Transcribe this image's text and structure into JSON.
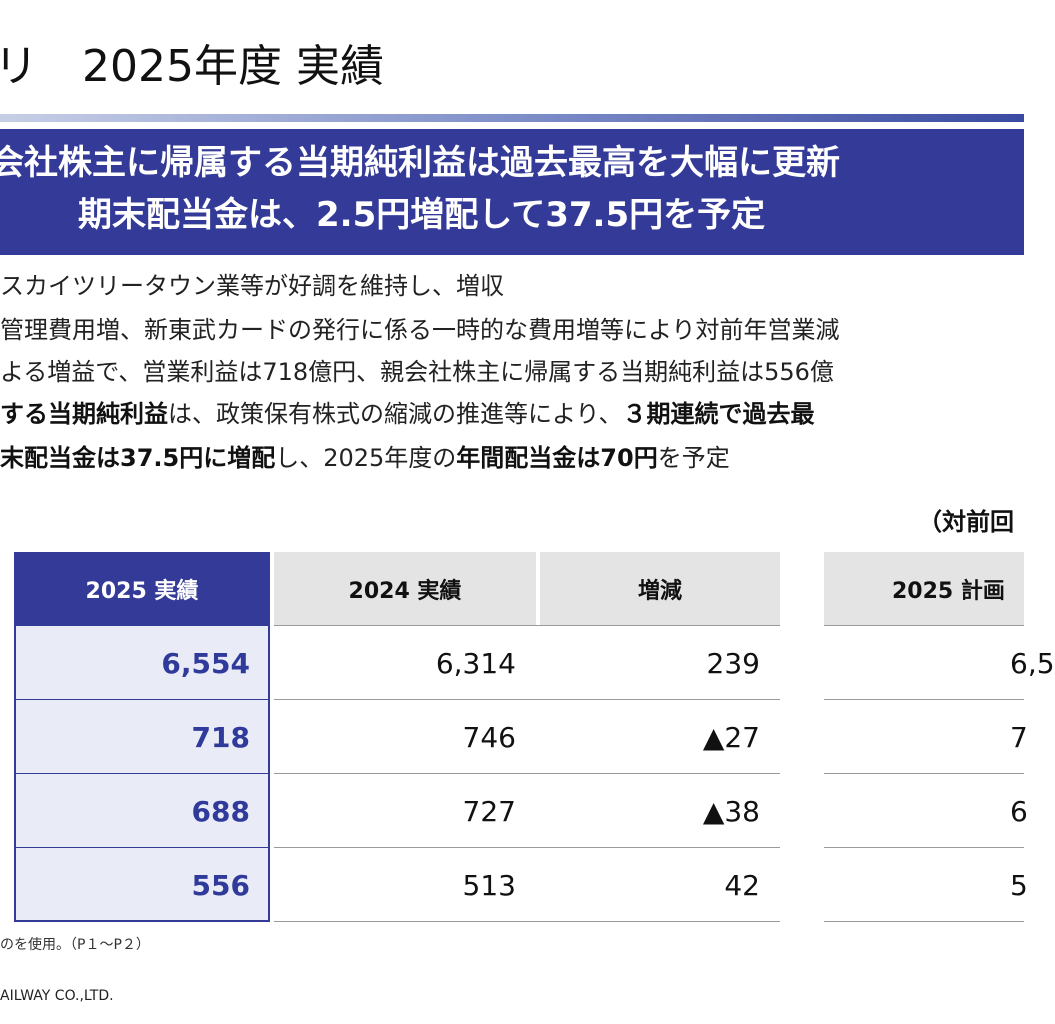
{
  "header": {
    "title": "リ　2025年度 実績"
  },
  "banner": {
    "line1": "会社株主に帰属する当期純利益は過去最高を大幅に更新",
    "line2": "期末配当金は、2.5円増配して37.5円を予定"
  },
  "bullets": [
    {
      "parts": [
        {
          "t": "スカイツリータウン業等が好調を維持し、増収",
          "b": false
        }
      ]
    },
    {
      "parts": [
        {
          "t": "管理費用増、新東武カードの発行に係る一時的な費用増等により対前年営業減",
          "b": false
        }
      ]
    },
    {
      "parts": [
        {
          "t": "よる増益で、営業利益は718億円、親会社株主に帰属する当期純利益は556億",
          "b": false
        }
      ]
    },
    {
      "parts": [
        {
          "t": "する当期純利益",
          "b": true
        },
        {
          "t": "は、政策保有株式の縮減の推進等により、",
          "b": false
        },
        {
          "t": "３期連続で過去最",
          "b": true
        }
      ]
    },
    {
      "parts": [
        {
          "t": "末配当金は37.5円に増配",
          "b": true
        },
        {
          "t": "し、2025年度の",
          "b": false
        },
        {
          "t": "年間配当金は70円",
          "b": true
        },
        {
          "t": "を予定",
          "b": false
        }
      ]
    }
  ],
  "unit_note": "（対前回",
  "table": {
    "headers": [
      "2025 実績",
      "2024 実績",
      "増減",
      "2025 計画"
    ],
    "rows": [
      [
        "6,554",
        "6,314",
        "239",
        "6,5"
      ],
      [
        "718",
        "746",
        "▲27",
        "7"
      ],
      [
        "688",
        "727",
        "▲38",
        "6"
      ],
      [
        "556",
        "513",
        "42",
        "5"
      ]
    ]
  },
  "footnote": "のを使用。（P１～P２）",
  "company": "AILWAY CO.,LTD."
}
